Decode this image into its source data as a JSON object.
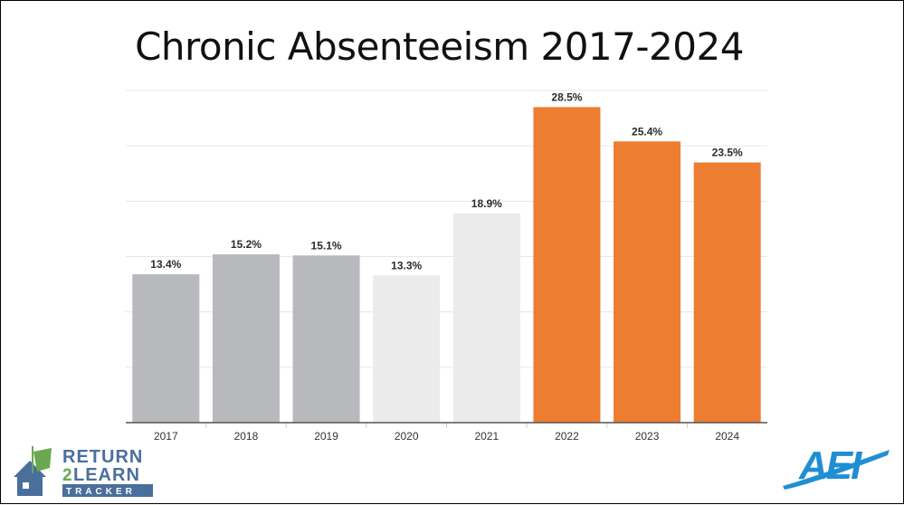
{
  "title": "Chronic Absenteeism 2017-2024",
  "chart_data": {
    "type": "bar",
    "title": "Chronic Absenteeism 2017-2024",
    "xlabel": "",
    "ylabel": "",
    "categories": [
      "2017",
      "2018",
      "2019",
      "2020",
      "2021",
      "2022",
      "2023",
      "2024"
    ],
    "values": [
      13.4,
      15.2,
      15.1,
      13.3,
      18.9,
      28.5,
      25.4,
      23.5
    ],
    "value_labels": [
      "13.4%",
      "15.2%",
      "15.1%",
      "13.3%",
      "18.9%",
      "28.5%",
      "25.4%",
      "23.5%"
    ],
    "bar_colors": [
      "#b8b9bd",
      "#b8b9bd",
      "#b8b9bd",
      "#ecebec",
      "#ecebec",
      "#ec7d31",
      "#ec7d31",
      "#ec7d31"
    ],
    "ylim": [
      0,
      30
    ],
    "gridlines": [
      5,
      10,
      15,
      20,
      25,
      30
    ],
    "grid": true,
    "legend": "none"
  },
  "logos": {
    "left": {
      "line1": "RETURN",
      "line2_num": "2",
      "line2": "LEARN",
      "line3": "TRACKER"
    },
    "right": {
      "text": "AEI"
    }
  },
  "colors": {
    "gray_bar": "#b8b9bd",
    "light_bar": "#ecebec",
    "orange_bar": "#ec7d31",
    "aei_blue": "#1f8fd3",
    "r2l_blue": "#4a6f9c",
    "r2l_green": "#6aa84f"
  }
}
